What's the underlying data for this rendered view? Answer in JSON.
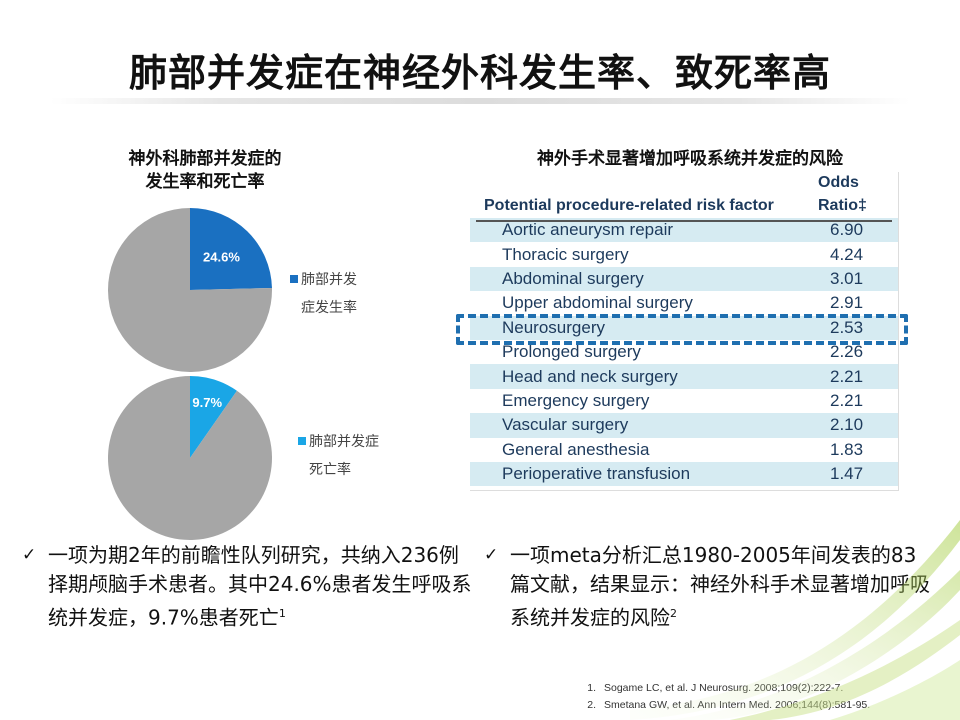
{
  "title": "肺部并发症在神经外科发生率、致死率高",
  "left_panel": {
    "subtitle_line1": "神外科肺部并发症的",
    "subtitle_line2": "发生率和死亡率"
  },
  "right_panel": {
    "subtitle": "神外手术显著增加呼吸系统并发症的风险"
  },
  "chart_data": [
    {
      "type": "pie",
      "slices": [
        {
          "label": "肺部并发症发生率",
          "value": 24.6,
          "color": "#1a70c1"
        },
        {
          "label": "",
          "value": 75.4,
          "color": "#a6a6a6"
        }
      ],
      "data_label": "24.6%",
      "legend": [
        "肺部并发",
        "症发生率"
      ],
      "legend_position": "right"
    },
    {
      "type": "pie",
      "slices": [
        {
          "label": "肺部并发症死亡率",
          "value": 9.7,
          "color": "#1aa6e6"
        },
        {
          "label": "",
          "value": 90.3,
          "color": "#a6a6a6"
        }
      ],
      "data_label": "9.7%",
      "legend": [
        "肺部并发症",
        "死亡率"
      ],
      "legend_position": "right"
    },
    {
      "type": "table",
      "columns": [
        "Potential procedure-related risk factor",
        "Odds Ratio‡"
      ],
      "col2_line1": "Odds",
      "col2_line2": "Ratio‡",
      "rows": [
        {
          "factor": "Aortic aneurysm repair",
          "ratio": "6.90"
        },
        {
          "factor": "Thoracic surgery",
          "ratio": "4.24"
        },
        {
          "factor": "Abdominal surgery",
          "ratio": "3.01"
        },
        {
          "factor": "Upper abdominal surgery",
          "ratio": "2.91"
        },
        {
          "factor": "Neurosurgery",
          "ratio": "2.53"
        },
        {
          "factor": "Prolonged surgery",
          "ratio": "2.26"
        },
        {
          "factor": "Head and neck surgery",
          "ratio": "2.21"
        },
        {
          "factor": "Emergency surgery",
          "ratio": "2.21"
        },
        {
          "factor": "Vascular surgery",
          "ratio": "2.10"
        },
        {
          "factor": "General anesthesia",
          "ratio": "1.83"
        },
        {
          "factor": "Perioperative transfusion",
          "ratio": "1.47"
        }
      ],
      "highlighted_row": "Neurosurgery"
    }
  ],
  "bullets": {
    "check": "✓",
    "left_text": "一项为期2年的前瞻性队列研究，共纳入236例择期颅脑手术患者。其中24.6%患者发生呼吸系统并发症，9.7%患者死亡",
    "left_sup": "1",
    "right_text": "一项meta分析汇总1980-2005年间发表的83篇文献，结果显示：神经外科手术显著增加呼吸系统并发症的风险",
    "right_sup": "2"
  },
  "references": [
    {
      "num": "1.",
      "text": "Sogame LC, et al. J Neurosurg. 2008;109(2):222-7."
    },
    {
      "num": "2.",
      "text": "Smetana GW, et al. Ann Intern Med. 2006;144(8):581-95."
    }
  ],
  "colors": {
    "pie_gray": "#a6a6a6",
    "pie1_blue": "#1a70c1",
    "pie2_blue": "#1aa6e6",
    "table_stripe": "#d6ebf2",
    "table_text": "#1d3a5c",
    "highlight_border": "#1f6fb0",
    "deco_green": "#9cc832"
  }
}
